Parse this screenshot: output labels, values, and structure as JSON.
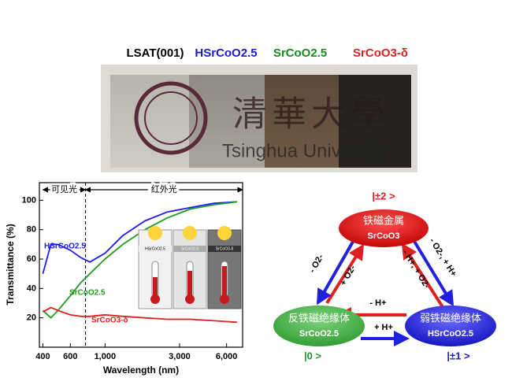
{
  "photo": {
    "labels": [
      "LSAT(001)",
      "HSrCoO2.5",
      "SrCoO2.5",
      "SrCoO3-δ"
    ],
    "overlay_text": [
      "清華大學",
      "Tsinghua University"
    ]
  },
  "chart_data": {
    "type": "line",
    "x_label": "Wavelength (nm)",
    "y_label": "Transmittance (%)",
    "x": [
      400,
      450,
      500,
      600,
      700,
      800,
      1000,
      1300,
      1800,
      2500,
      3500,
      5000,
      7000
    ],
    "series": [
      {
        "name": "HSrCoO2.5",
        "color": "#1a1aff",
        "values": [
          50,
          70,
          70,
          66,
          61,
          58,
          64,
          76,
          86,
          92,
          95,
          98,
          99
        ]
      },
      {
        "name": "SrCoO2.5",
        "color": "#229922",
        "values": [
          25,
          20,
          25,
          35,
          44,
          50,
          60,
          70,
          80,
          88,
          94,
          97,
          99
        ]
      },
      {
        "name": "SrCoO3-δ",
        "color": "#e02020",
        "values": [
          24,
          27,
          25,
          22,
          21,
          21,
          22,
          21,
          20,
          19,
          19,
          18,
          17
        ]
      }
    ],
    "xlim": [
      380,
      7600
    ],
    "ylim": [
      0,
      112
    ],
    "log_x": true,
    "xticks": [
      400,
      600,
      {
        "value": 1000,
        "label": "1,000"
      },
      {
        "value": 3000,
        "label": "3,000"
      },
      {
        "value": 6000,
        "label": "6,000"
      }
    ],
    "yticks": [
      20,
      40,
      60,
      80,
      100
    ],
    "regions": [
      {
        "label": "可见光",
        "range": [
          400,
          750
        ]
      },
      {
        "label": "红外光",
        "range": [
          750,
          7600
        ]
      }
    ]
  },
  "inset": {
    "labels": [
      "HSrCoO2.5",
      "SrCoO2.5",
      "SrCoO3-δ"
    ]
  },
  "diagram": {
    "nodes": [
      {
        "name": "铁磁金属",
        "formula": "SrCoO3",
        "state": "|±2 >"
      },
      {
        "name": "反铁磁绝缘体",
        "formula": "SrCoO2.5",
        "state": "|0 >"
      },
      {
        "name": "弱铁磁绝缘体",
        "formula": "HSrCoO2.5",
        "state": "|±1 >"
      }
    ],
    "edges": [
      "- O2-",
      "+ O2-",
      "- O2-, + H+",
      "- H+, + O2-",
      "- H+",
      "+ H+"
    ]
  }
}
